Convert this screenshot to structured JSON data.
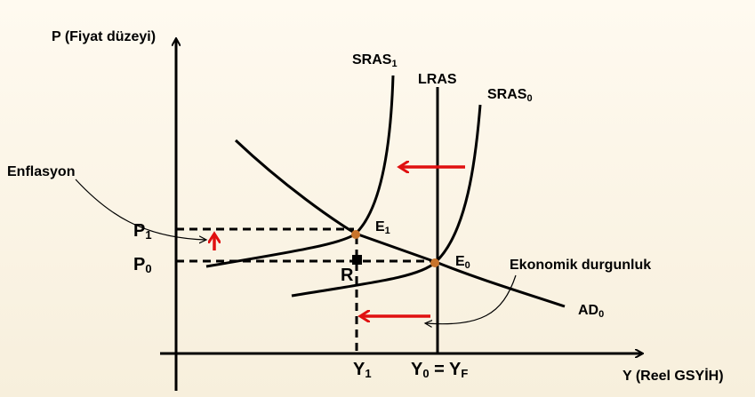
{
  "axes": {
    "y_label": "P (Fiyat düzeyi)",
    "x_label": "Y (Reel GSYİH)"
  },
  "curves": {
    "sras1": {
      "text": "SRAS",
      "sub": "1"
    },
    "lras": {
      "text": "LRAS"
    },
    "sras0": {
      "text": "SRAS",
      "sub": "0"
    },
    "ad0": {
      "text": "AD",
      "sub": "0"
    }
  },
  "points": {
    "e1": {
      "text": "E",
      "sub": "1"
    },
    "e0": {
      "text": "E",
      "sub": "0"
    },
    "r": {
      "text": "R"
    }
  },
  "price_levels": {
    "p1": {
      "text": "P",
      "sub": "1"
    },
    "p0": {
      "text": "P",
      "sub": "0"
    }
  },
  "outputs": {
    "y1": {
      "text": "Y",
      "sub": "1"
    },
    "y0": {
      "text": "Y",
      "sub": "0",
      "text2": " = Y",
      "sub2": "F"
    }
  },
  "annotations": {
    "inflation": "Enflasyon",
    "recession": "Ekonomik durgunluk"
  }
}
